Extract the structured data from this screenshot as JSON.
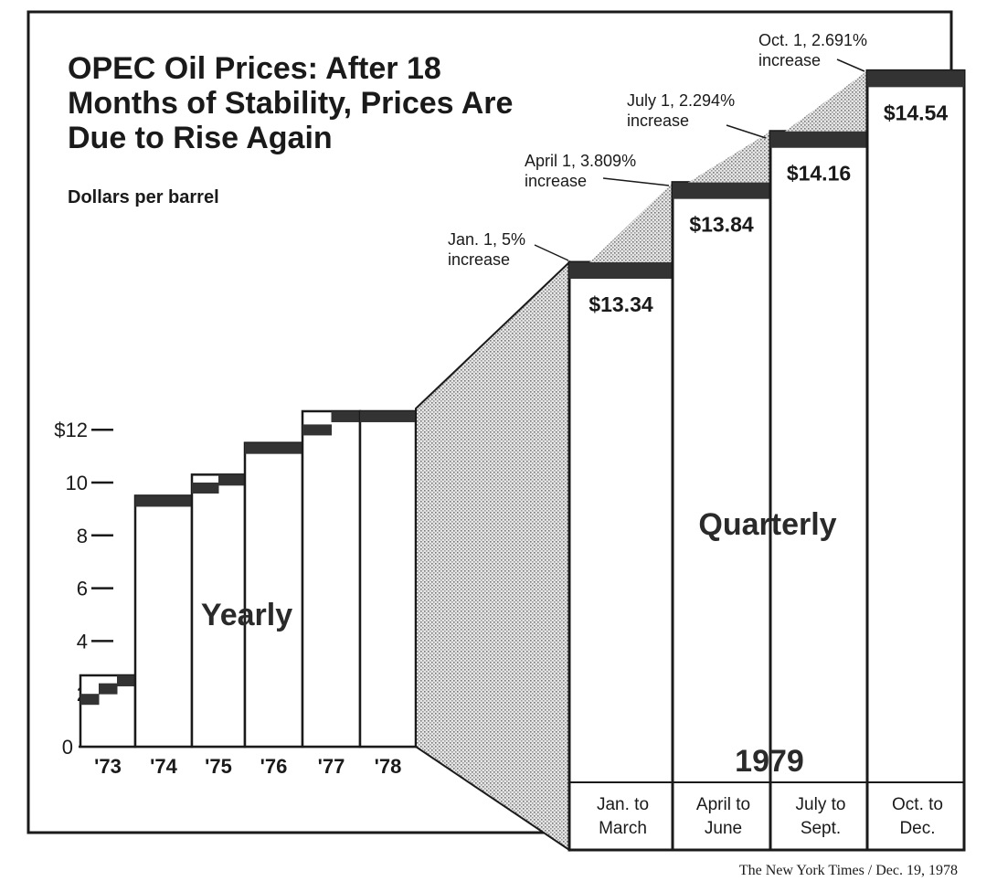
{
  "title_lines": [
    "OPEC Oil Prices: After 18",
    "Months of Stability, Prices Are",
    "Due to Rise Again"
  ],
  "subtitle": "Dollars per barrel",
  "source": "The New York Times / Dec. 19, 1978",
  "colors": {
    "ink": "#1a1a1a",
    "step_band": "#333333",
    "shading": "#c9c9c9",
    "paper": "#ffffff"
  },
  "chart_data": [
    {
      "type": "bar",
      "label": "Yearly",
      "ylabel": "Dollars per barrel",
      "ylim": [
        0,
        12
      ],
      "y_ticks": [
        "0",
        "2",
        "4",
        "6",
        "8",
        "10",
        "$12"
      ],
      "categories": [
        "'73",
        "'74",
        "'75",
        "'76",
        "'77",
        "'78"
      ],
      "values": [
        2.7,
        9.5,
        10.3,
        11.5,
        12.7,
        12.7
      ],
      "steps_within_year": [
        [
          2.0,
          2.4,
          2.7
        ],
        [
          9.5
        ],
        [
          10.0,
          10.3
        ],
        [
          11.5
        ],
        [
          12.2,
          12.7
        ],
        [
          12.7
        ]
      ]
    },
    {
      "type": "bar",
      "label": "Quarterly",
      "year_label": "1979",
      "categories": [
        "Jan. to\nMarch",
        "April to\nJune",
        "July to\nSept.",
        "Oct. to\nDec."
      ],
      "values": [
        13.34,
        13.84,
        14.16,
        14.54
      ],
      "data_labels": [
        "$13.34",
        "$13.84",
        "$14.16",
        "$14.54"
      ],
      "annotations": [
        {
          "lines": [
            "Jan. 1, 5%",
            "increase"
          ]
        },
        {
          "lines": [
            "April 1, 3.809%",
            "increase"
          ]
        },
        {
          "lines": [
            "July 1, 2.294%",
            "increase"
          ]
        },
        {
          "lines": [
            "Oct. 1, 2.691%",
            "increase"
          ]
        }
      ]
    }
  ]
}
